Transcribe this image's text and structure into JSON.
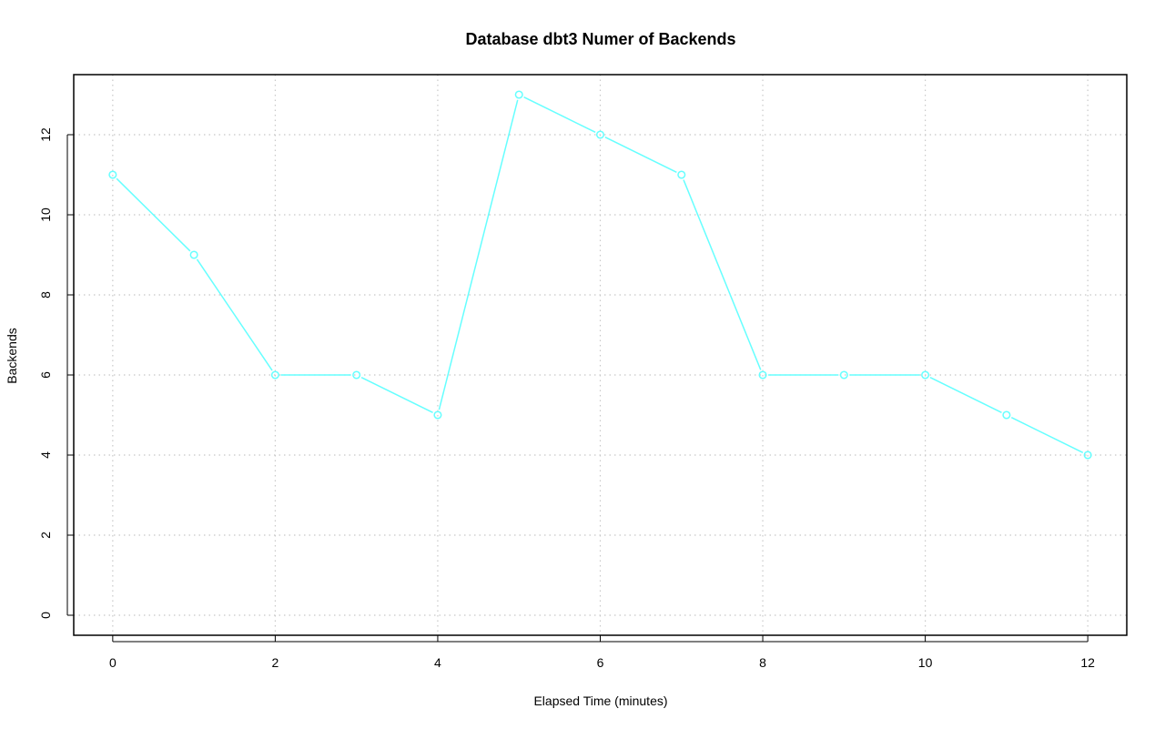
{
  "chart_data": {
    "type": "line",
    "title": "Database dbt3 Numer of Backends",
    "xlabel": "Elapsed Time (minutes)",
    "ylabel": "Backends",
    "x": [
      0,
      1,
      2,
      3,
      4,
      5,
      6,
      7,
      8,
      9,
      10,
      11,
      12
    ],
    "series": [
      {
        "values": [
          11,
          9,
          6,
          6,
          5,
          13,
          12,
          11,
          6,
          6,
          6,
          5,
          4
        ],
        "color": "#66ffff",
        "marker": "open-circle"
      }
    ],
    "xlim": [
      -0.48,
      12.48
    ],
    "ylim": [
      -0.5,
      13.5
    ],
    "xticks": [
      "0",
      "2",
      "4",
      "6",
      "8",
      "10",
      "12"
    ],
    "yticks": [
      "0",
      "2",
      "4",
      "6",
      "8",
      "10",
      "12"
    ],
    "grid": true,
    "grid_style": "dotted",
    "legend": "none"
  }
}
